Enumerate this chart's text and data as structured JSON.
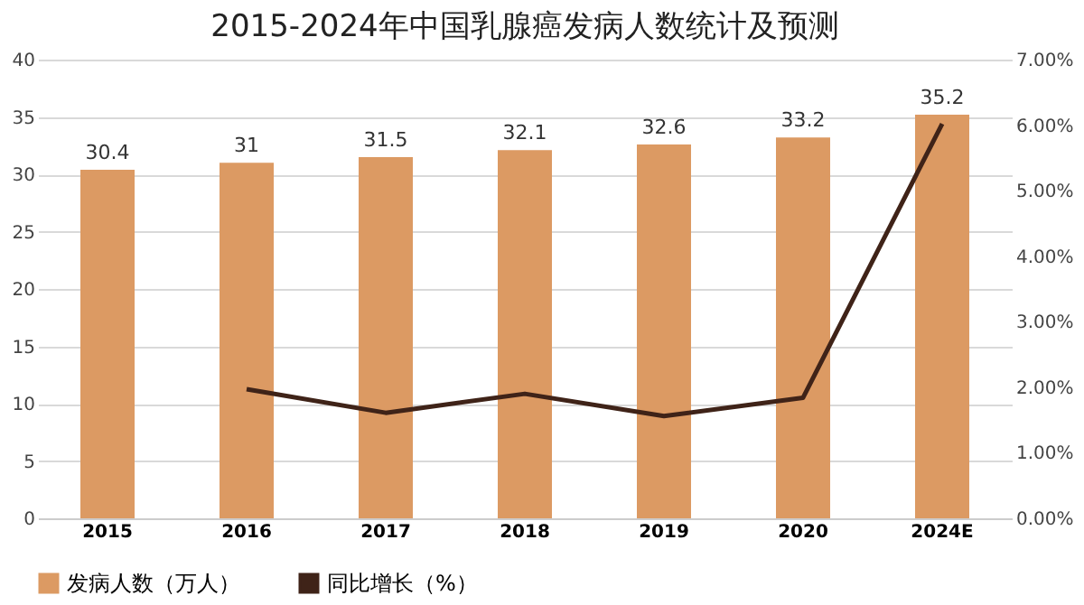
{
  "chart_data": {
    "type": "bar",
    "title": "2015-2024年中国乳腺癌发病人数统计及预测",
    "categories": [
      "2015",
      "2016",
      "2017",
      "2018",
      "2019",
      "2020",
      "2024E"
    ],
    "series": [
      {
        "name": "发病人数（万人）",
        "color": "#dc9a63",
        "values": [
          30.4,
          31,
          31.5,
          32.1,
          32.6,
          33.2,
          35.2
        ],
        "value_labels": [
          "30.4",
          "31",
          "31.5",
          "32.1",
          "32.6",
          "33.2",
          "35.2"
        ]
      },
      {
        "name": "同比增长（%）",
        "type": "line",
        "axis": "y2",
        "color": "#3f2318",
        "values": [
          null,
          1.97,
          1.61,
          1.9,
          1.56,
          1.84,
          6.02
        ]
      }
    ],
    "ylim": [
      0,
      40
    ],
    "yticks": [
      0,
      5,
      10,
      15,
      20,
      25,
      30,
      35,
      40
    ],
    "y2lim": [
      0,
      7
    ],
    "y2ticks": [
      {
        "value": 0,
        "label": "0.00%"
      },
      {
        "value": 1,
        "label": "1.00%"
      },
      {
        "value": 2,
        "label": "2.00%"
      },
      {
        "value": 3,
        "label": "3.00%"
      },
      {
        "value": 4,
        "label": "4.00%"
      },
      {
        "value": 5,
        "label": "5.00%"
      },
      {
        "value": 6,
        "label": "6.00%"
      },
      {
        "value": 7,
        "label": "7.00%"
      }
    ],
    "grid": "y",
    "legend": "bottom",
    "marker": "none",
    "line_style": "solid"
  }
}
